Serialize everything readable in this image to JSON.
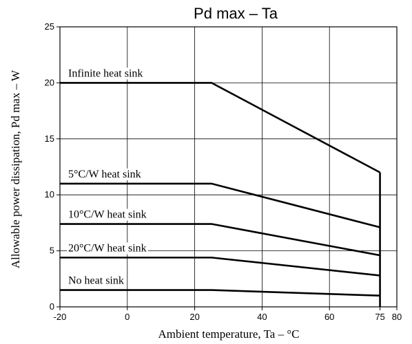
{
  "chart_data": {
    "type": "line",
    "title": "Pd max – Ta",
    "xlabel": "Ambient temperature,  Ta – °C",
    "ylabel": "Allowable power dissipation,  Pd max – W",
    "xlim": [
      -20,
      80
    ],
    "ylim": [
      0,
      25
    ],
    "x_ticks": [
      -20,
      0,
      20,
      40,
      60,
      75,
      80
    ],
    "y_ticks": [
      0,
      5,
      10,
      15,
      20,
      25
    ],
    "x_gridlines": [
      0,
      20,
      40,
      60
    ],
    "y_gridlines": [
      5,
      10,
      15,
      20
    ],
    "grid": true,
    "series": [
      {
        "name": "Infinite heat sink",
        "x": [
          -20,
          25,
          75
        ],
        "y": [
          20,
          20,
          12
        ]
      },
      {
        "name": "5°C/W heat sink",
        "x": [
          -20,
          25,
          75
        ],
        "y": [
          11,
          11,
          7.1
        ]
      },
      {
        "name": "10°C/W heat sink",
        "x": [
          -20,
          25,
          75
        ],
        "y": [
          7.4,
          7.4,
          4.6
        ]
      },
      {
        "name": "20°C/W heat sink",
        "x": [
          -20,
          25,
          75
        ],
        "y": [
          4.4,
          4.4,
          2.8
        ]
      },
      {
        "name": "No heat sink",
        "x": [
          -20,
          25,
          75
        ],
        "y": [
          1.5,
          1.5,
          1.0
        ]
      }
    ],
    "vertical_drop": {
      "x": 75,
      "y": [
        0,
        12
      ]
    }
  }
}
